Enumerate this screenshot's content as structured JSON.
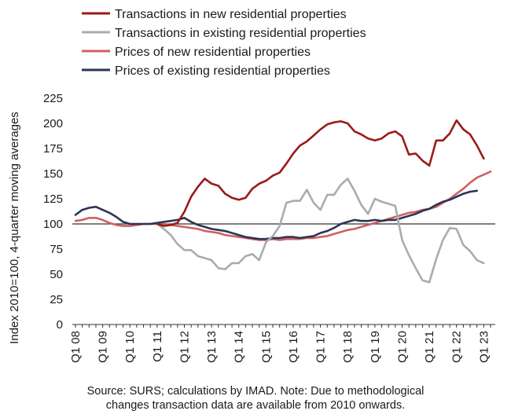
{
  "chart_data": {
    "type": "line",
    "ylabel": "Index 2010=100, 4-quarter moving averages",
    "ylim": [
      0,
      225
    ],
    "yticks": [
      0,
      25,
      50,
      75,
      100,
      125,
      150,
      175,
      200,
      225
    ],
    "reference_line": 100,
    "x_start": "Q1 08",
    "xtick_labels": [
      "Q1 08",
      "Q1 09",
      "Q1 10",
      "Q1 11",
      "Q1 12",
      "Q1 13",
      "Q1 14",
      "Q1 15",
      "Q1 16",
      "Q1 17",
      "Q1 18",
      "Q1 19",
      "Q1 20",
      "Q1 21",
      "Q1 22",
      "Q1 23"
    ],
    "legend_position": "top",
    "series": [
      {
        "name": "Transactions in new residential properties",
        "color": "#9b1a1a",
        "start_quarter_index": 12,
        "values": [
          100,
          98,
          99,
          101,
          112,
          127,
          137,
          145,
          140,
          138,
          130,
          126,
          124,
          126,
          135,
          140,
          143,
          148,
          151,
          160,
          170,
          178,
          182,
          188,
          194,
          199,
          201,
          202,
          200,
          192,
          189,
          185,
          183,
          185,
          190,
          192,
          187,
          169,
          170,
          163,
          158,
          183,
          183,
          190,
          203,
          194,
          189,
          178,
          165
        ]
      },
      {
        "name": "Transactions in existing residential properties",
        "color": "#a8acb0",
        "start_quarter_index": 12,
        "values": [
          100,
          95,
          89,
          80,
          74,
          74,
          68,
          66,
          64,
          56,
          55,
          61,
          61,
          68,
          70,
          64,
          82,
          88,
          98,
          121,
          123,
          123,
          134,
          121,
          114,
          129,
          129,
          139,
          145,
          133,
          119,
          110,
          125,
          122,
          120,
          118,
          84,
          69,
          56,
          44,
          42,
          65,
          84,
          96,
          95,
          79,
          73,
          64,
          61
        ]
      },
      {
        "name": "Prices of new residential properties",
        "color": "#d06060",
        "start_quarter_index": 0,
        "values": [
          103,
          104,
          106,
          106,
          104,
          101,
          99,
          98,
          98,
          99,
          100,
          100,
          100,
          100,
          99,
          98,
          97,
          96,
          95,
          93,
          92,
          91,
          89,
          88,
          87,
          86,
          85,
          84,
          84,
          85,
          84,
          85,
          85,
          85,
          86,
          86,
          87,
          88,
          90,
          92,
          94,
          95,
          97,
          99,
          101,
          103,
          105,
          107,
          109,
          111,
          112,
          114,
          115,
          117,
          121,
          125,
          130,
          135,
          141,
          146,
          149,
          152
        ]
      },
      {
        "name": "Prices of existing residential properties",
        "color": "#2a3555",
        "start_quarter_index": 0,
        "values": [
          109,
          114,
          116,
          117,
          114,
          111,
          107,
          102,
          100,
          100,
          100,
          100,
          101,
          102,
          103,
          104,
          106,
          102,
          99,
          97,
          95,
          94,
          93,
          91,
          89,
          87,
          86,
          85,
          85,
          86,
          86,
          87,
          87,
          86,
          87,
          88,
          91,
          93,
          96,
          100,
          102,
          104,
          103,
          103,
          104,
          103,
          104,
          104,
          106,
          108,
          110,
          113,
          115,
          119,
          122,
          124,
          127,
          130,
          132,
          133
        ]
      }
    ]
  },
  "source_note": {
    "line1": "Source: SURS; calculations by IMAD. Note: Due to methodological",
    "line2": "changes transaction data are available from 2010 onwards."
  }
}
